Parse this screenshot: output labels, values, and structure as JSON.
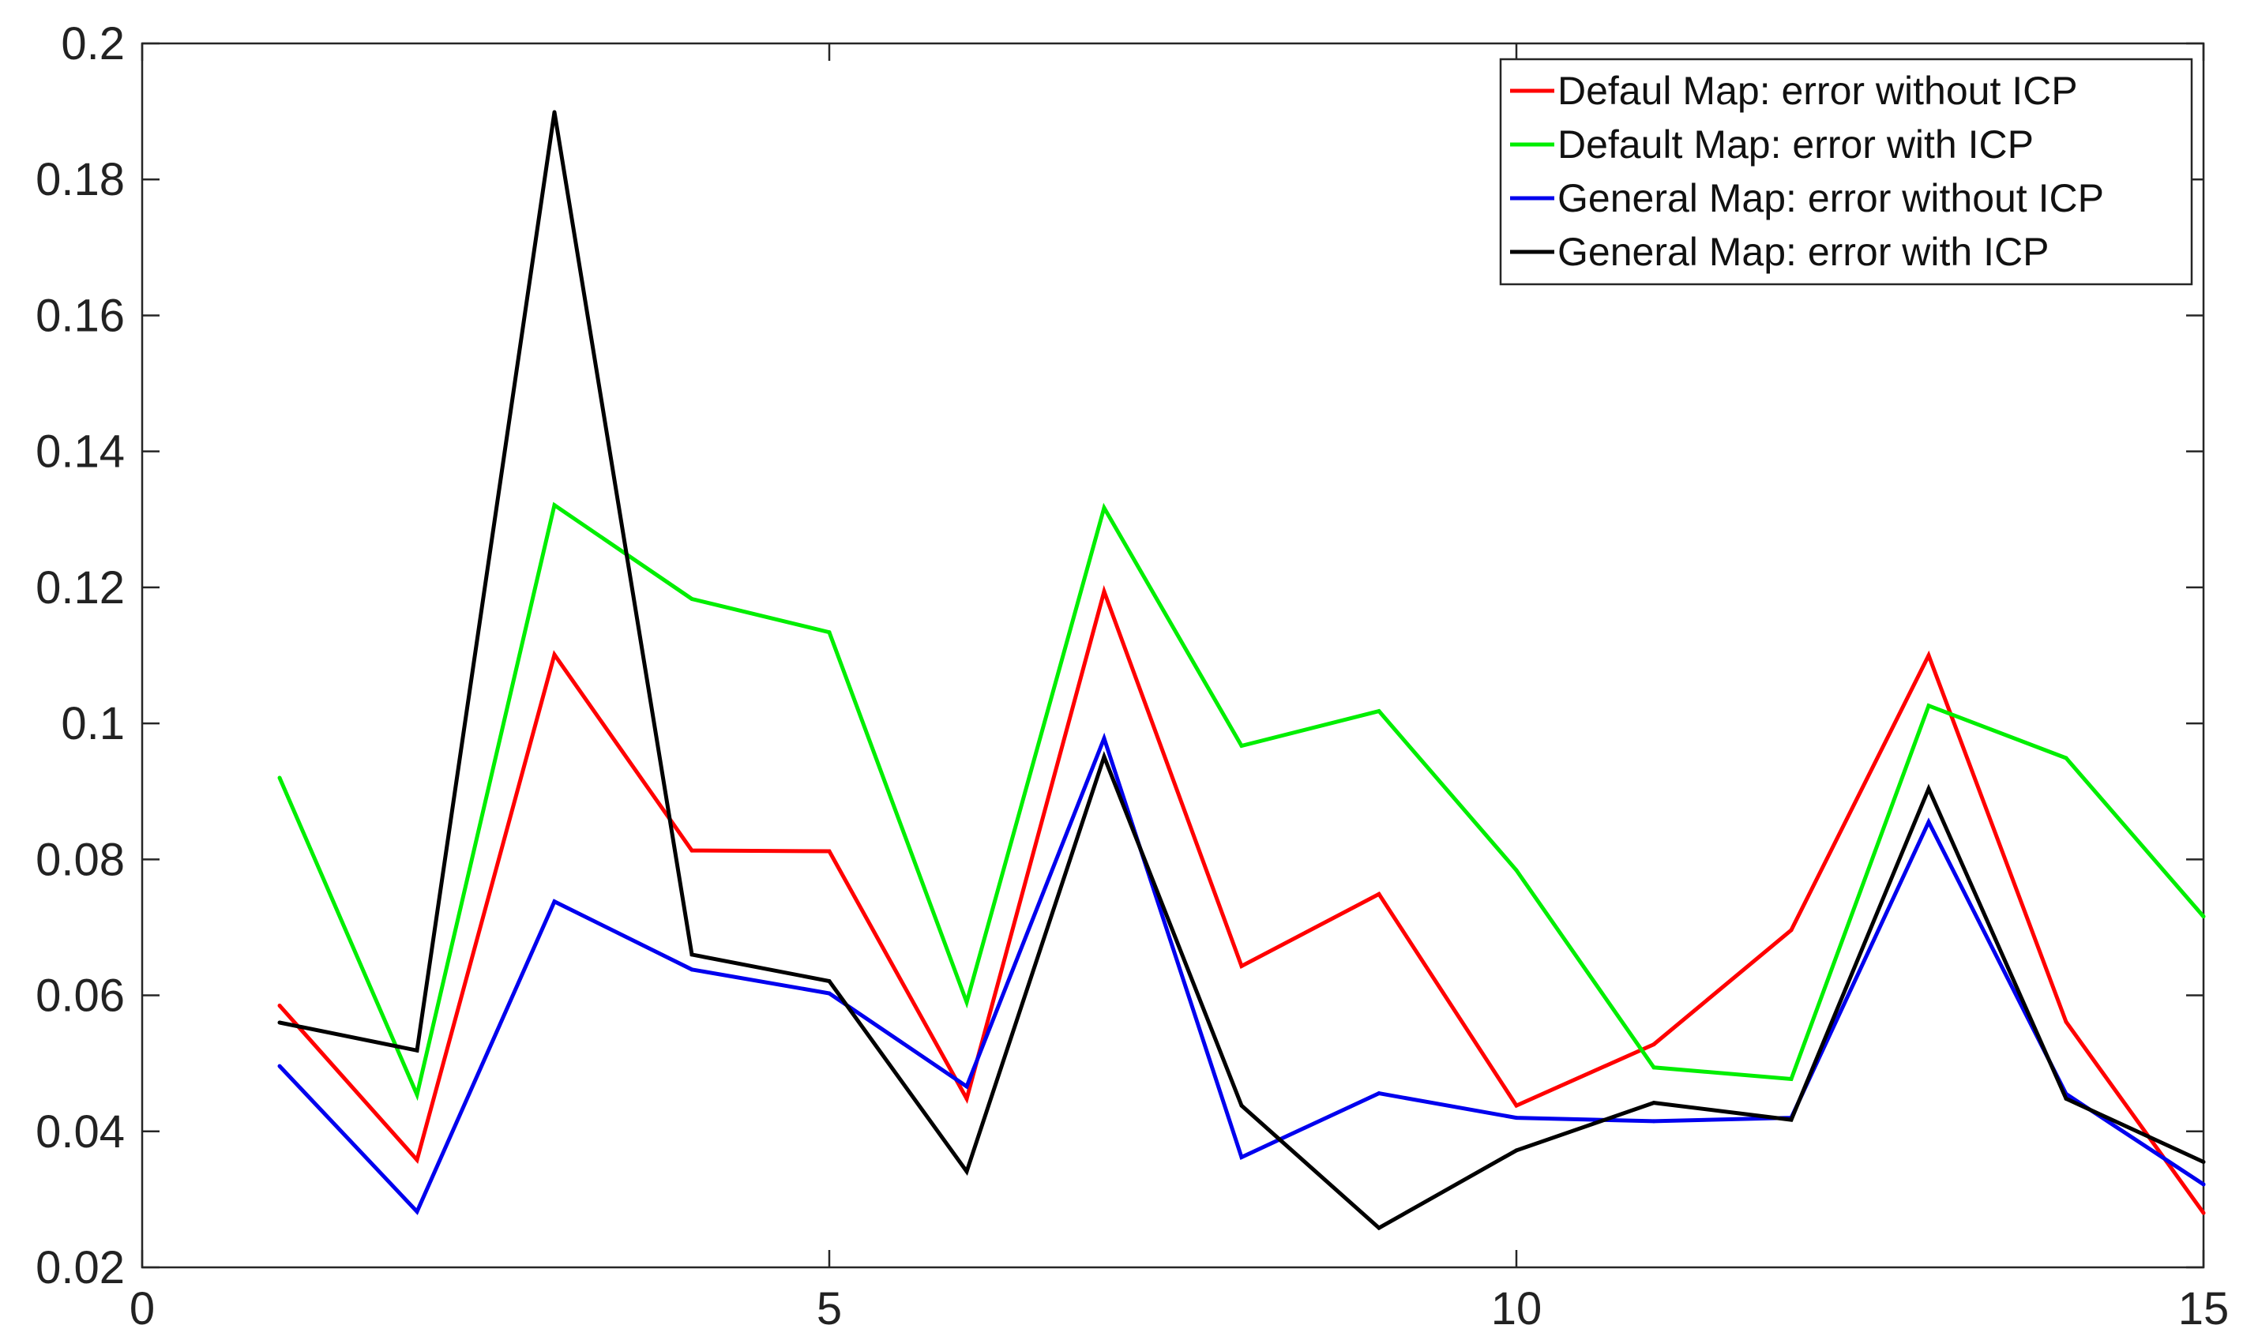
{
  "chart_data": {
    "type": "line",
    "title": "",
    "xlabel": "",
    "ylabel": "",
    "xlim": [
      0,
      15
    ],
    "ylim": [
      0.02,
      0.2
    ],
    "xticks": [
      0,
      5,
      10,
      15
    ],
    "yticks": [
      0.02,
      0.04,
      0.06,
      0.08,
      0.1,
      0.12,
      0.14,
      0.16,
      0.18,
      0.2
    ],
    "xtick_labels": [
      "0",
      "5",
      "10",
      "15"
    ],
    "ytick_labels": [
      "0.02",
      "0.04",
      "0.06",
      "0.08",
      "0.1",
      "0.12",
      "0.14",
      "0.16",
      "0.18",
      "0.2"
    ],
    "grid": false,
    "legend_position": "top-right",
    "x": [
      1,
      2,
      3,
      4,
      5,
      6,
      7,
      8,
      9,
      10,
      11,
      12,
      13,
      14,
      15
    ],
    "series": [
      {
        "name": "Defaul Map: error without ICP",
        "color": "#ff0000",
        "values": [
          0.0585,
          0.0358,
          0.1101,
          0.0813,
          0.0812,
          0.0448,
          0.1194,
          0.0643,
          0.0749,
          0.0438,
          0.0528,
          0.0696,
          0.11,
          0.0561,
          0.028
        ]
      },
      {
        "name": "Default Map: error with ICP",
        "color": "#00ee00",
        "values": [
          0.092,
          0.0454,
          0.1321,
          0.1183,
          0.1134,
          0.059,
          0.1317,
          0.0967,
          0.1018,
          0.0784,
          0.0494,
          0.0477,
          0.1026,
          0.0949,
          0.0716
        ]
      },
      {
        "name": "General Map: error without ICP",
        "color": "#0000ee",
        "values": [
          0.0496,
          0.0282,
          0.0738,
          0.0638,
          0.0603,
          0.0466,
          0.0978,
          0.0362,
          0.0456,
          0.042,
          0.0415,
          0.042,
          0.0855,
          0.0455,
          0.0322
        ]
      },
      {
        "name": "General Map: error with ICP",
        "color": "#000000",
        "values": [
          0.056,
          0.0519,
          0.1899,
          0.066,
          0.0621,
          0.0341,
          0.0951,
          0.0438,
          0.0258,
          0.0372,
          0.0442,
          0.0417,
          0.0904,
          0.0448,
          0.0355
        ]
      }
    ]
  }
}
